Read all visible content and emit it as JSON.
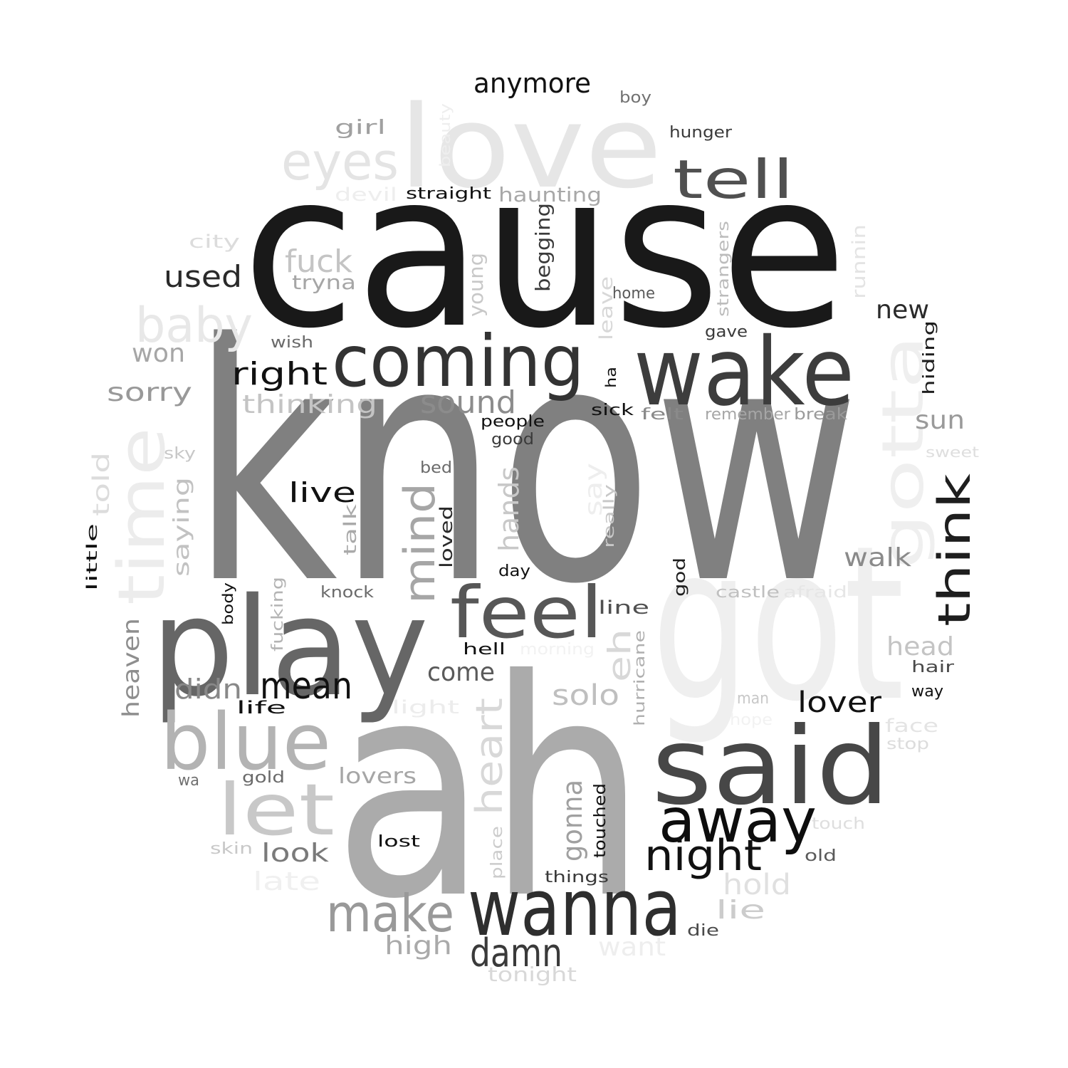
{
  "words": [
    {
      "text": "know",
      "color": "#808080"
    },
    {
      "text": "cause",
      "color": "#191919"
    },
    {
      "text": "ah",
      "color": "#ababab"
    },
    {
      "text": "got",
      "color": "#efefef"
    },
    {
      "text": "love",
      "color": "#e6e6e6"
    },
    {
      "text": "play",
      "color": "#666666"
    },
    {
      "text": "said",
      "color": "#474747"
    },
    {
      "text": "wake",
      "color": "#3d3d3d"
    },
    {
      "text": "wanna",
      "color": "#2e2e2e"
    },
    {
      "text": "coming",
      "color": "#333333"
    },
    {
      "text": "feel",
      "color": "#575757"
    },
    {
      "text": "blue",
      "color": "#b3b3b3"
    },
    {
      "text": "away",
      "color": "#0d0d0d"
    },
    {
      "text": "time",
      "color": "#ececec"
    },
    {
      "text": "gotta",
      "color": "#efefef"
    },
    {
      "text": "let",
      "color": "#c8c8c8"
    },
    {
      "text": "tell",
      "color": "#505050"
    },
    {
      "text": "make",
      "color": "#999999"
    },
    {
      "text": "eyes",
      "color": "#e4e4e4"
    },
    {
      "text": "night",
      "color": "#111111"
    },
    {
      "text": "think",
      "color": "#1e1e1e"
    },
    {
      "text": "baby",
      "color": "#e8e8e8"
    },
    {
      "text": "mind",
      "color": "#a6a6a6"
    },
    {
      "text": "damn",
      "color": "#3a3a3a"
    },
    {
      "text": "mean",
      "color": "#111111"
    },
    {
      "text": "heart",
      "color": "#d8d8d8"
    },
    {
      "text": "fuck",
      "color": "#c4c4c4"
    },
    {
      "text": "sound",
      "color": "#8c8c8c"
    },
    {
      "text": "right",
      "color": "#111111"
    },
    {
      "text": "anymore",
      "color": "#111111"
    },
    {
      "text": "used",
      "color": "#2a2a2a"
    },
    {
      "text": "lover",
      "color": "#111111"
    },
    {
      "text": "hold",
      "color": "#e0e0e0"
    },
    {
      "text": "solo",
      "color": "#bfbfbf"
    },
    {
      "text": "eh",
      "color": "#d8d8d8"
    },
    {
      "text": "gonna",
      "color": "#a0a0a0"
    },
    {
      "text": "live",
      "color": "#111111"
    },
    {
      "text": "come",
      "color": "#5a5a5a"
    },
    {
      "text": "didn",
      "color": "#888888"
    },
    {
      "text": "thinking",
      "color": "#c4c4c4"
    },
    {
      "text": "hands",
      "color": "#c8c8c8"
    },
    {
      "text": "head",
      "color": "#c4c4c4"
    },
    {
      "text": "walk",
      "color": "#8a8a8a"
    },
    {
      "text": "sorry",
      "color": "#999999"
    },
    {
      "text": "new",
      "color": "#2a2a2a"
    },
    {
      "text": "sun",
      "color": "#9a9a9a"
    },
    {
      "text": "won",
      "color": "#a6a6a6"
    },
    {
      "text": "lie",
      "color": "#cccccc"
    },
    {
      "text": "look",
      "color": "#7a7a7a"
    },
    {
      "text": "high",
      "color": "#aaaaaa"
    },
    {
      "text": "heaven",
      "color": "#8e8e8e"
    },
    {
      "text": "told",
      "color": "#dcdcdc"
    },
    {
      "text": "saying",
      "color": "#c2c2c2"
    },
    {
      "text": "late",
      "color": "#f0f0f0"
    },
    {
      "text": "want",
      "color": "#eeeeee"
    },
    {
      "text": "lovers",
      "color": "#a6a6a6"
    },
    {
      "text": "girl",
      "color": "#a0a0a0"
    },
    {
      "text": "haunting",
      "color": "#a8a8a8"
    },
    {
      "text": "young",
      "color": "#c8c8c8"
    },
    {
      "text": "begging",
      "color": "#3a3a3a"
    },
    {
      "text": "tonight",
      "color": "#d8d8d8"
    },
    {
      "text": "tryna",
      "color": "#a6a6a6"
    },
    {
      "text": "say",
      "color": "#eeeeee"
    },
    {
      "text": "leave",
      "color": "#d8d8d8"
    },
    {
      "text": "runnin",
      "color": "#e4e4e4"
    },
    {
      "text": "strangers",
      "color": "#bcbcbc"
    },
    {
      "text": "hiding",
      "color": "#1e1e1e"
    },
    {
      "text": "talk",
      "color": "#aaaaaa"
    },
    {
      "text": "loved",
      "color": "#2a2a2a"
    },
    {
      "text": "line",
      "color": "#505050"
    },
    {
      "text": "hurricane",
      "color": "#b0b0b0"
    },
    {
      "text": "devil",
      "color": "#eeeeee"
    },
    {
      "text": "straight",
      "color": "#111111"
    },
    {
      "text": "city",
      "color": "#dcdcdc"
    },
    {
      "text": "hunger",
      "color": "#3a3a3a"
    },
    {
      "text": "boy",
      "color": "#707070"
    },
    {
      "text": "beauty",
      "color": "#eeeeee"
    },
    {
      "text": "home",
      "color": "#5a5a5a"
    },
    {
      "text": "gave",
      "color": "#3a3a3a"
    },
    {
      "text": "wish",
      "color": "#6a6a6a"
    },
    {
      "text": "sick",
      "color": "#111111"
    },
    {
      "text": "felt",
      "color": "#8a8a8a"
    },
    {
      "text": "remember",
      "color": "#a6a6a6"
    },
    {
      "text": "break",
      "color": "#9a9a9a"
    },
    {
      "text": "people",
      "color": "#111111"
    },
    {
      "text": "good",
      "color": "#3a3a3a"
    },
    {
      "text": "sky",
      "color": "#c8c8c8"
    },
    {
      "text": "sweet",
      "color": "#dedede"
    },
    {
      "text": "bed",
      "color": "#6a6a6a"
    },
    {
      "text": "really",
      "color": "#c8c8c8"
    },
    {
      "text": "day",
      "color": "#111111"
    },
    {
      "text": "god",
      "color": "#1e1e1e"
    },
    {
      "text": "little",
      "color": "#111111"
    },
    {
      "text": "knock",
      "color": "#6a6a6a"
    },
    {
      "text": "castle",
      "color": "#c0c0c0"
    },
    {
      "text": "afraid",
      "color": "#e6e6e6"
    },
    {
      "text": "fucking",
      "color": "#b4b4b4"
    },
    {
      "text": "body",
      "color": "#111111"
    },
    {
      "text": "hell",
      "color": "#111111"
    },
    {
      "text": "morning",
      "color": "#f2f2f2"
    },
    {
      "text": "hair",
      "color": "#4a4a4a"
    },
    {
      "text": "way",
      "color": "#111111"
    },
    {
      "text": "life",
      "color": "#111111"
    },
    {
      "text": "light",
      "color": "#ececec"
    },
    {
      "text": "man",
      "color": "#c8c8c8"
    },
    {
      "text": "hope",
      "color": "#f2f2f2"
    },
    {
      "text": "face",
      "color": "#e4e4e4"
    },
    {
      "text": "stop",
      "color": "#dcdcdc"
    },
    {
      "text": "wa",
      "color": "#707070"
    },
    {
      "text": "gold",
      "color": "#6a6a6a"
    },
    {
      "text": "touch",
      "color": "#dedede"
    },
    {
      "text": "touched",
      "color": "#111111"
    },
    {
      "text": "place",
      "color": "#cccccc"
    },
    {
      "text": "old",
      "color": "#5a5a5a"
    },
    {
      "text": "skin",
      "color": "#c8c8c8"
    },
    {
      "text": "lost",
      "color": "#111111"
    },
    {
      "text": "things",
      "color": "#3a3a3a"
    },
    {
      "text": "die",
      "color": "#4a4a4a"
    },
    {
      "text": "ha",
      "color": "#111111"
    }
  ]
}
